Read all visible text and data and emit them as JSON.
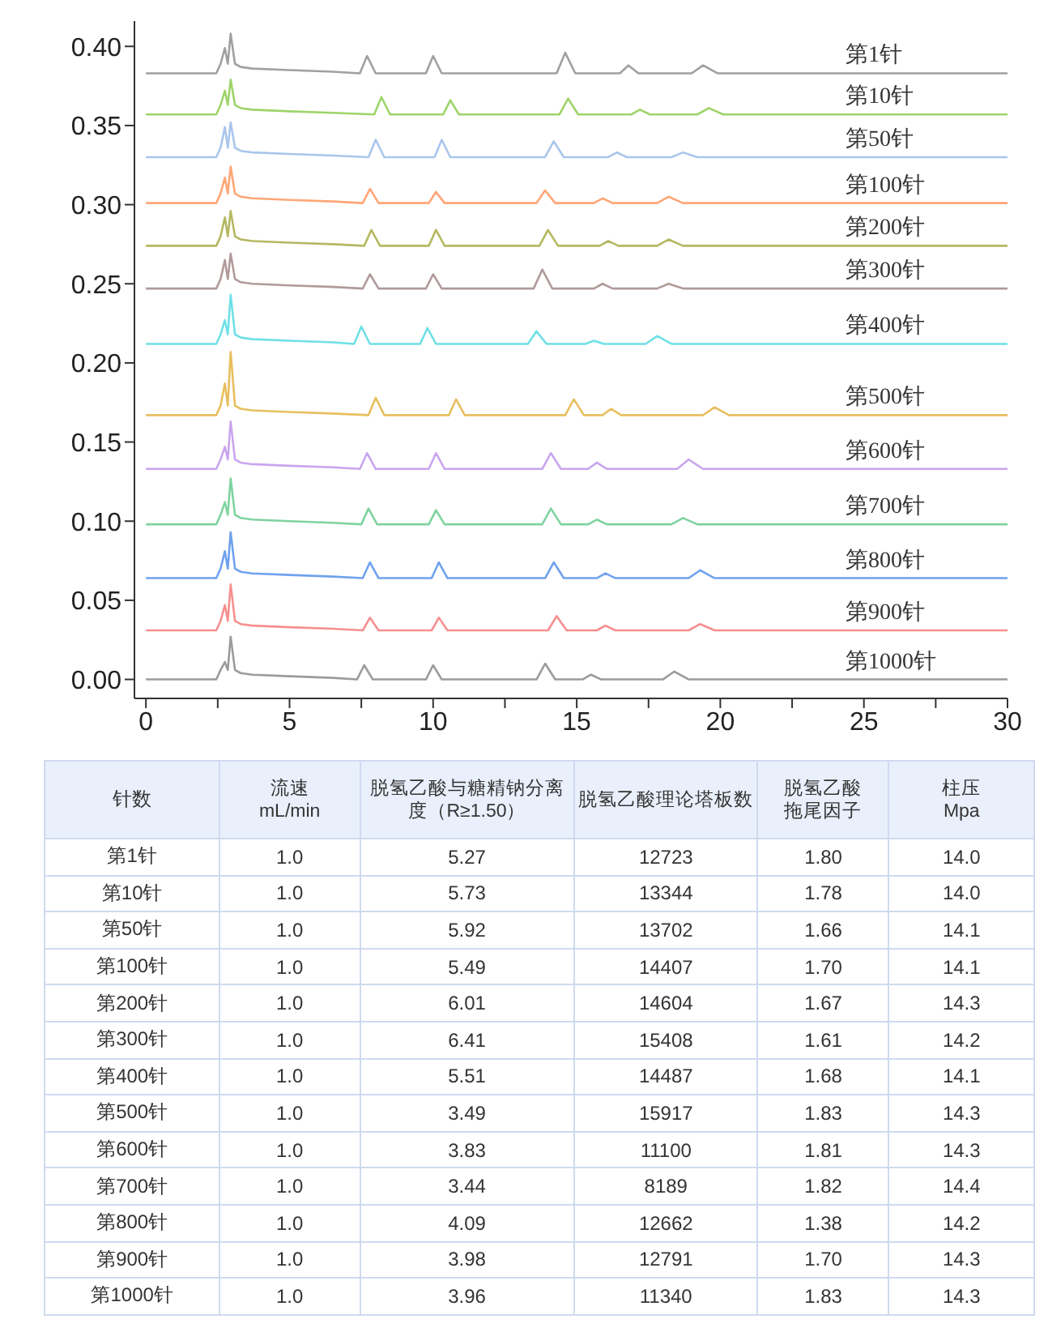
{
  "chart_data": [
    {
      "type": "line",
      "xlim": [
        -0.4,
        30
      ],
      "ylim": [
        -0.012,
        0.416
      ],
      "xticks": [
        0,
        {
          "value": 2.5,
          "label": null
        },
        5,
        {
          "value": 7.5,
          "label": null
        },
        10,
        {
          "value": 12.5,
          "label": null
        },
        15,
        {
          "value": 17.5,
          "label": null
        },
        20,
        {
          "value": 22.5,
          "label": null
        },
        25,
        {
          "value": 27.5,
          "label": null
        },
        30
      ],
      "yticks": [
        {
          "value": 0,
          "label": "0.00"
        },
        0.05,
        {
          "value": 0.1,
          "label": "0.10"
        },
        0.15,
        {
          "value": 0.2,
          "label": "0.20"
        },
        0.25,
        {
          "value": 0.3,
          "label": "0.30"
        },
        0.35,
        {
          "value": 0.4,
          "label": "0.40"
        }
      ],
      "series": [
        {
          "name": "第1针",
          "color": "#a0a0a0",
          "x": [
            0,
            2.45,
            2.6,
            2.75,
            2.85,
            2.95,
            3.1,
            3.3,
            3.7,
            5,
            6.5,
            7.45,
            7.7,
            8,
            9.75,
            10,
            10.3,
            14.3,
            14.6,
            14.95,
            16.5,
            16.8,
            17.15,
            19,
            19.4,
            19.9,
            30
          ],
          "values": [
            0.383,
            0.383,
            0.389,
            0.399,
            0.389,
            0.408,
            0.389,
            0.387,
            0.386,
            0.385,
            0.384,
            0.383,
            0.394,
            0.383,
            0.383,
            0.394,
            0.383,
            0.383,
            0.396,
            0.383,
            0.383,
            0.388,
            0.383,
            0.383,
            0.388,
            0.383,
            0.383
          ]
        },
        {
          "name": "第10针",
          "color": "#9ed46a",
          "x": [
            0,
            2.45,
            2.6,
            2.75,
            2.85,
            2.95,
            3.1,
            3.3,
            3.7,
            5,
            6.5,
            7.95,
            8.2,
            8.5,
            10.35,
            10.6,
            10.9,
            14.4,
            14.7,
            15.05,
            16.9,
            17.2,
            17.55,
            19.2,
            19.6,
            20.1,
            30
          ],
          "values": [
            0.357,
            0.357,
            0.363,
            0.372,
            0.363,
            0.379,
            0.363,
            0.361,
            0.36,
            0.359,
            0.358,
            0.357,
            0.368,
            0.357,
            0.357,
            0.366,
            0.357,
            0.357,
            0.367,
            0.357,
            0.357,
            0.36,
            0.357,
            0.357,
            0.361,
            0.357,
            0.357
          ]
        },
        {
          "name": "第50针",
          "color": "#a9c6ec",
          "x": [
            0,
            2.45,
            2.6,
            2.75,
            2.85,
            2.95,
            3.1,
            3.3,
            3.7,
            5,
            6.5,
            7.75,
            8,
            8.3,
            10.05,
            10.3,
            10.6,
            13.9,
            14.2,
            14.55,
            16.1,
            16.4,
            16.75,
            18.3,
            18.7,
            19.2,
            30
          ],
          "values": [
            0.33,
            0.33,
            0.336,
            0.349,
            0.336,
            0.352,
            0.336,
            0.334,
            0.333,
            0.332,
            0.331,
            0.33,
            0.341,
            0.33,
            0.33,
            0.341,
            0.33,
            0.33,
            0.34,
            0.33,
            0.33,
            0.333,
            0.33,
            0.33,
            0.333,
            0.33,
            0.33
          ]
        },
        {
          "name": "第100针",
          "color": "#ffa676",
          "x": [
            0,
            2.45,
            2.6,
            2.75,
            2.85,
            2.95,
            3.1,
            3.3,
            3.7,
            5,
            6.5,
            7.55,
            7.8,
            8.1,
            9.85,
            10.1,
            10.4,
            13.6,
            13.9,
            14.25,
            15.6,
            15.9,
            16.25,
            17.8,
            18.2,
            18.7,
            30
          ],
          "values": [
            0.301,
            0.301,
            0.307,
            0.317,
            0.307,
            0.324,
            0.307,
            0.305,
            0.304,
            0.303,
            0.302,
            0.301,
            0.31,
            0.301,
            0.301,
            0.308,
            0.301,
            0.301,
            0.309,
            0.301,
            0.301,
            0.304,
            0.301,
            0.301,
            0.305,
            0.301,
            0.301
          ]
        },
        {
          "name": "第200针",
          "color": "#b5b861",
          "x": [
            0,
            2.45,
            2.6,
            2.75,
            2.85,
            2.95,
            3.1,
            3.3,
            3.7,
            5,
            6.5,
            7.6,
            7.85,
            8.15,
            9.85,
            10.1,
            10.4,
            13.7,
            14,
            14.35,
            15.8,
            16.1,
            16.45,
            17.8,
            18.2,
            18.7,
            30
          ],
          "values": [
            0.274,
            0.274,
            0.28,
            0.292,
            0.28,
            0.296,
            0.28,
            0.278,
            0.277,
            0.276,
            0.275,
            0.274,
            0.284,
            0.274,
            0.274,
            0.284,
            0.274,
            0.274,
            0.284,
            0.274,
            0.274,
            0.277,
            0.274,
            0.274,
            0.278,
            0.274,
            0.274
          ]
        },
        {
          "name": "第300针",
          "color": "#b09a9a",
          "x": [
            0,
            2.45,
            2.6,
            2.75,
            2.85,
            2.95,
            3.1,
            3.3,
            3.7,
            5,
            6.5,
            7.55,
            7.8,
            8.1,
            9.75,
            10,
            10.3,
            13.5,
            13.8,
            14.15,
            15.6,
            15.9,
            16.25,
            17.8,
            18.2,
            18.7,
            30
          ],
          "values": [
            0.247,
            0.247,
            0.253,
            0.265,
            0.253,
            0.269,
            0.253,
            0.251,
            0.25,
            0.249,
            0.248,
            0.247,
            0.256,
            0.247,
            0.247,
            0.256,
            0.247,
            0.247,
            0.259,
            0.247,
            0.247,
            0.25,
            0.247,
            0.247,
            0.25,
            0.247,
            0.247
          ]
        },
        {
          "name": "第400针",
          "color": "#6fe0e6",
          "x": [
            0,
            2.45,
            2.6,
            2.75,
            2.85,
            2.95,
            3.1,
            3.3,
            3.7,
            5,
            6.5,
            7.25,
            7.5,
            7.8,
            9.55,
            9.8,
            10.1,
            13.3,
            13.6,
            13.95,
            15.3,
            15.6,
            15.95,
            17.4,
            17.8,
            18.3,
            30
          ],
          "values": [
            0.212,
            0.212,
            0.218,
            0.227,
            0.218,
            0.243,
            0.218,
            0.216,
            0.215,
            0.214,
            0.213,
            0.212,
            0.223,
            0.212,
            0.212,
            0.222,
            0.212,
            0.212,
            0.22,
            0.212,
            0.212,
            0.214,
            0.212,
            0.212,
            0.217,
            0.212,
            0.212
          ]
        },
        {
          "name": "第500针",
          "color": "#e7bf5f",
          "x": [
            0,
            2.45,
            2.6,
            2.75,
            2.85,
            2.95,
            3.1,
            3.3,
            3.7,
            5,
            6.5,
            7.75,
            8,
            8.3,
            10.55,
            10.8,
            11.1,
            14.6,
            14.9,
            15.25,
            15.9,
            16.2,
            16.55,
            19.4,
            19.8,
            20.3,
            30
          ],
          "values": [
            0.167,
            0.167,
            0.173,
            0.187,
            0.173,
            0.207,
            0.173,
            0.171,
            0.17,
            0.169,
            0.168,
            0.167,
            0.178,
            0.167,
            0.167,
            0.177,
            0.167,
            0.167,
            0.177,
            0.167,
            0.167,
            0.171,
            0.167,
            0.167,
            0.172,
            0.167,
            0.167
          ]
        },
        {
          "name": "第600针",
          "color": "#caa5ee",
          "x": [
            0,
            2.45,
            2.6,
            2.75,
            2.85,
            2.95,
            3.1,
            3.3,
            3.7,
            5,
            6.5,
            7.45,
            7.7,
            8,
            9.85,
            10.1,
            10.4,
            13.8,
            14.1,
            14.45,
            15.4,
            15.7,
            16.05,
            18.5,
            18.9,
            19.4,
            30
          ],
          "values": [
            0.133,
            0.133,
            0.139,
            0.147,
            0.139,
            0.163,
            0.139,
            0.137,
            0.136,
            0.135,
            0.134,
            0.133,
            0.143,
            0.133,
            0.133,
            0.143,
            0.133,
            0.133,
            0.143,
            0.133,
            0.133,
            0.137,
            0.133,
            0.133,
            0.139,
            0.133,
            0.133
          ]
        },
        {
          "name": "第700针",
          "color": "#7fd3a0",
          "x": [
            0,
            2.45,
            2.6,
            2.75,
            2.85,
            2.95,
            3.1,
            3.3,
            3.7,
            5,
            6.5,
            7.5,
            7.75,
            8.05,
            9.85,
            10.1,
            10.4,
            13.8,
            14.1,
            14.45,
            15.4,
            15.7,
            16.05,
            18.3,
            18.7,
            19.2,
            30
          ],
          "values": [
            0.098,
            0.098,
            0.104,
            0.112,
            0.104,
            0.127,
            0.104,
            0.102,
            0.101,
            0.1,
            0.099,
            0.098,
            0.108,
            0.098,
            0.098,
            0.107,
            0.098,
            0.098,
            0.108,
            0.098,
            0.098,
            0.101,
            0.098,
            0.098,
            0.102,
            0.098,
            0.098
          ]
        },
        {
          "name": "第800针",
          "color": "#6fa2ee",
          "x": [
            0,
            2.45,
            2.6,
            2.75,
            2.85,
            2.95,
            3.1,
            3.3,
            3.7,
            5,
            6.5,
            7.55,
            7.8,
            8.1,
            9.95,
            10.2,
            10.5,
            13.9,
            14.2,
            14.55,
            15.7,
            16,
            16.35,
            18.9,
            19.3,
            19.8,
            30
          ],
          "values": [
            0.064,
            0.064,
            0.07,
            0.081,
            0.07,
            0.093,
            0.07,
            0.068,
            0.067,
            0.066,
            0.065,
            0.064,
            0.074,
            0.064,
            0.064,
            0.074,
            0.064,
            0.064,
            0.074,
            0.064,
            0.064,
            0.067,
            0.064,
            0.064,
            0.069,
            0.064,
            0.064
          ]
        },
        {
          "name": "第900针",
          "color": "#f68f8f",
          "x": [
            0,
            2.45,
            2.6,
            2.75,
            2.85,
            2.95,
            3.1,
            3.3,
            3.7,
            5,
            6.5,
            7.55,
            7.8,
            8.1,
            9.95,
            10.2,
            10.5,
            14,
            14.3,
            14.65,
            15.7,
            16,
            16.35,
            18.9,
            19.3,
            19.8,
            30
          ],
          "values": [
            0.031,
            0.031,
            0.037,
            0.047,
            0.037,
            0.06,
            0.037,
            0.035,
            0.034,
            0.033,
            0.032,
            0.031,
            0.039,
            0.031,
            0.031,
            0.039,
            0.031,
            0.031,
            0.04,
            0.031,
            0.031,
            0.034,
            0.031,
            0.031,
            0.035,
            0.031,
            0.031
          ]
        },
        {
          "name": "第1000针",
          "color": "#9b9b9b",
          "x": [
            0,
            2.45,
            2.6,
            2.75,
            2.85,
            2.95,
            3.1,
            3.3,
            3.7,
            5,
            6.5,
            7.35,
            7.6,
            7.9,
            9.75,
            10,
            10.3,
            13.6,
            13.9,
            14.25,
            15.2,
            15.5,
            15.85,
            18,
            18.4,
            18.9,
            30
          ],
          "values": [
            0,
            0,
            0.006,
            0.011,
            0.006,
            0.027,
            0.006,
            0.004,
            0.003,
            0.002,
            0.001,
            0,
            0.009,
            0,
            0,
            0.009,
            0,
            0,
            0.01,
            0,
            0,
            0.003,
            0,
            0,
            0.005,
            0,
            0
          ]
        }
      ]
    },
    {
      "type": "other",
      "ylabel": "针数",
      "categories": [
        "流速\nmL/min",
        "脱氢乙酸与糖精钠分离度（R≥1.50）",
        "脱氢乙酸理论塔板数",
        "脱氢乙酸拖尾因子",
        "柱压\nMpa"
      ],
      "y_categories": [
        "第1针",
        "第10针",
        "第50针",
        "第100针",
        "第200针",
        "第300针",
        "第400针",
        "第500针",
        "第600针",
        "第700针",
        "第800针",
        "第900针",
        "第1000针"
      ],
      "cells": [
        [
          "1.0",
          "5.27",
          "12723",
          "1.80",
          "14.0"
        ],
        [
          "1.0",
          "5.73",
          "13344",
          "1.78",
          "14.0"
        ],
        [
          "1.0",
          "5.92",
          "13702",
          "1.66",
          "14.1"
        ],
        [
          "1.0",
          "5.49",
          "14407",
          "1.70",
          "14.1"
        ],
        [
          "1.0",
          "6.01",
          "14604",
          "1.67",
          "14.3"
        ],
        [
          "1.0",
          "6.41",
          "15408",
          "1.61",
          "14.2"
        ],
        [
          "1.0",
          "5.51",
          "14487",
          "1.68",
          "14.1"
        ],
        [
          "1.0",
          "3.49",
          "15917",
          "1.83",
          "14.3"
        ],
        [
          "1.0",
          "3.83",
          "11100",
          "1.81",
          "14.3"
        ],
        [
          "1.0",
          "3.44",
          "8189",
          "1.82",
          "14.4"
        ],
        [
          "1.0",
          "4.09",
          "12662",
          "1.38",
          "14.2"
        ],
        [
          "1.0",
          "3.98",
          "12791",
          "1.70",
          "14.3"
        ],
        [
          "1.0",
          "3.96",
          "11340",
          "1.83",
          "14.3"
        ]
      ]
    }
  ]
}
